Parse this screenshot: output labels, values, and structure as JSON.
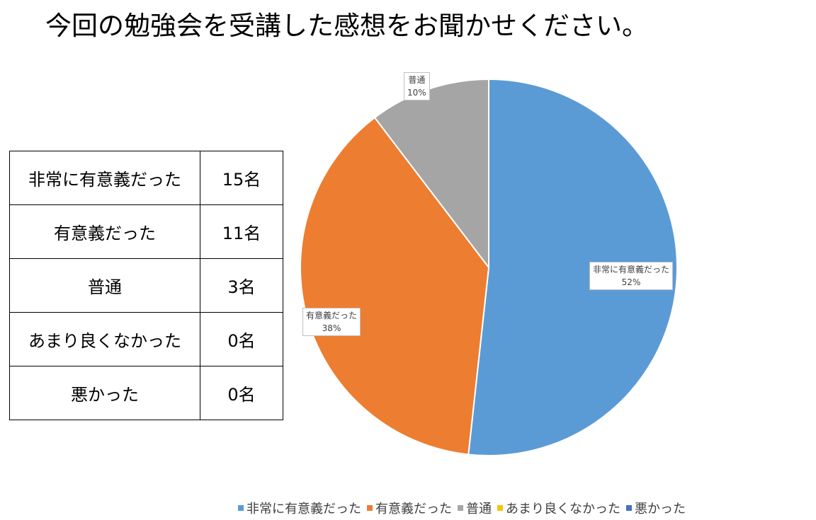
{
  "chart_data": {
    "type": "pie",
    "title": "今回の勉強会を受講した感想をお聞かせください。",
    "categories": [
      "非常に有意義だった",
      "有意義だった",
      "普通",
      "あまり良くなかった",
      "悪かった"
    ],
    "values": [
      15,
      11,
      3,
      0,
      0
    ],
    "colors": [
      "#5b9bd5",
      "#ed7d31",
      "#a5a5a5",
      "#ffc000",
      "#4472c4"
    ],
    "data_labels": [
      {
        "name": "非常に有意義だった",
        "pct": "52%"
      },
      {
        "name": "有意義だった",
        "pct": "38%"
      },
      {
        "name": "普通",
        "pct": "10%"
      }
    ],
    "legend_position": "bottom"
  },
  "table": [
    {
      "label": "非常に有意義だった",
      "count": "15名"
    },
    {
      "label": "有意義だった",
      "count": "11名"
    },
    {
      "label": "普通",
      "count": "3名"
    },
    {
      "label": "あまり良くなかった",
      "count": "0名"
    },
    {
      "label": "悪かった",
      "count": "0名"
    }
  ]
}
